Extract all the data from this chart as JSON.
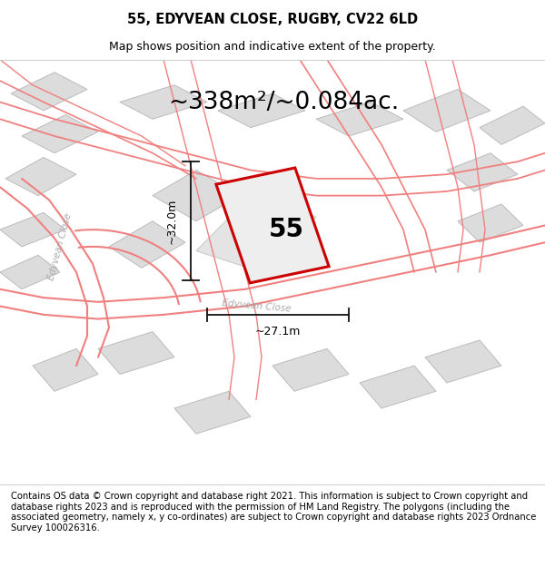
{
  "title": "55, EDYVEAN CLOSE, RUGBY, CV22 6LD",
  "subtitle": "Map shows position and indicative extent of the property.",
  "footer": "Contains OS data © Crown copyright and database right 2021. This information is subject to Crown copyright and database rights 2023 and is reproduced with the permission of HM Land Registry. The polygons (including the associated geometry, namely x, y co-ordinates) are subject to Crown copyright and database rights 2023 Ordnance Survey 100026316.",
  "area_label": "~338m²/~0.084ac.",
  "house_number": "55",
  "dim_width_label": "~27.1m",
  "dim_height_label": "~32.0m",
  "map_bg": "#f2f2f2",
  "building_fill": "#dcdcdc",
  "building_edge": "#bbbbbb",
  "road_color": "#f08080",
  "subject_edge": "#cc0000",
  "subject_fill": "#eeeeee",
  "dim_color": "#111111",
  "road_label_color": "#aaaaaa",
  "title_fontsize": 10.5,
  "subtitle_fontsize": 9,
  "footer_fontsize": 7.2,
  "area_fontsize": 19,
  "house_fontsize": 20,
  "dim_fontsize": 9
}
